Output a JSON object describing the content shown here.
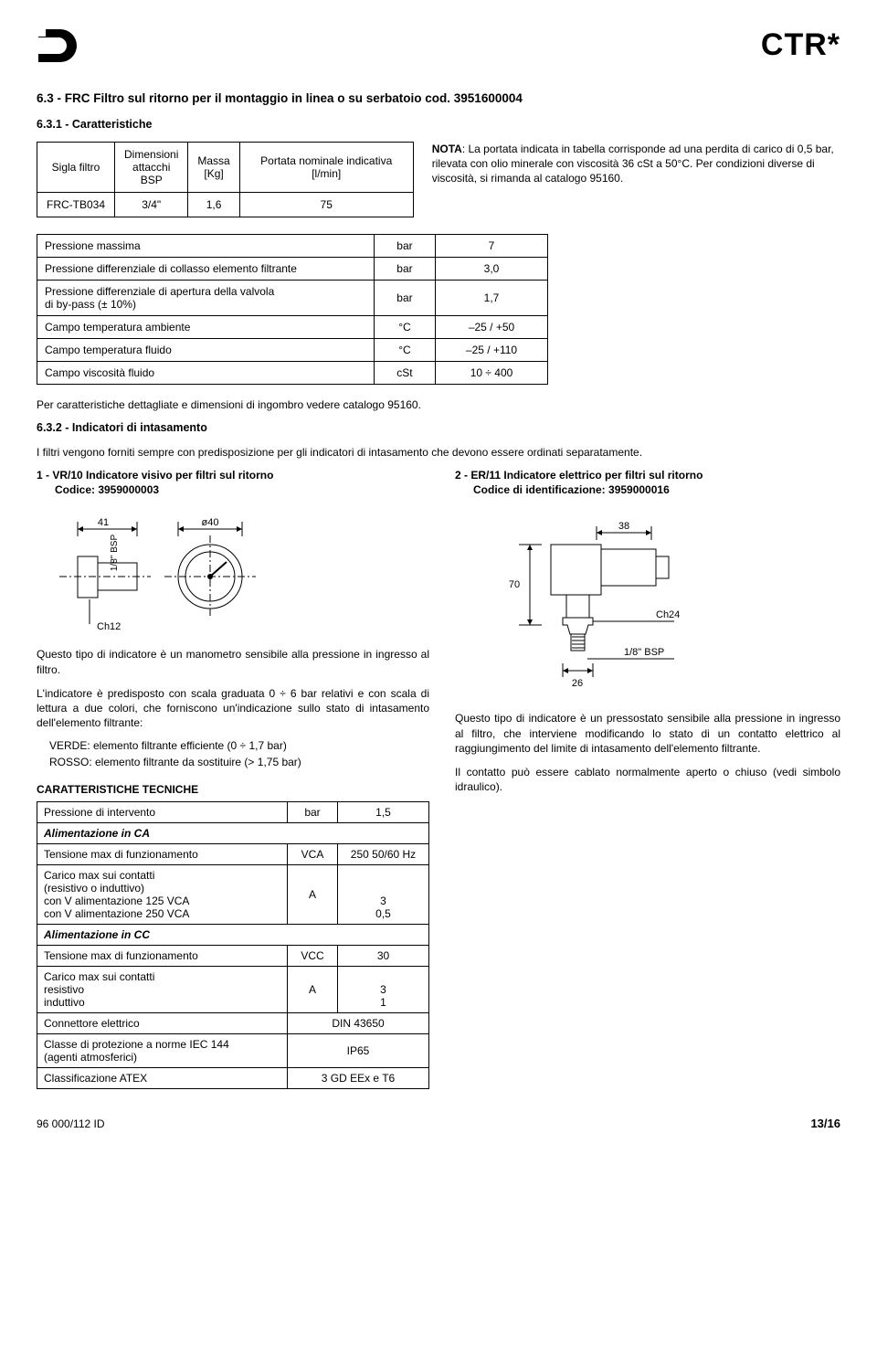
{
  "header": {
    "brand": "CTR*"
  },
  "s63": {
    "title": "6.3 - FRC Filtro sul ritorno per il montaggio in linea o su serbatoio cod. 3951600004",
    "sub631": "6.3.1 - Caratteristiche",
    "t1": {
      "h1": "Sigla filtro",
      "h2": "Dimensioni\nattacchi\nBSP",
      "h3": "Massa\n[Kg]",
      "h4": "Portata nominale indicativa\n[l/min]",
      "r1c1": "FRC-TB034",
      "r1c2": "3/4\"",
      "r1c3": "1,6",
      "r1c4": "75"
    },
    "note": "NOTA: La portata indicata in tabella corrisponde ad una perdita di carico di 0,5 bar, rilevata con olio minerale con viscosità 36 cSt a 50°C. Per condizioni diverse di viscosità, si rimanda al catalogo 95160.",
    "params": [
      [
        "Pressione massima",
        "bar",
        "7"
      ],
      [
        "Pressione differenziale di collasso elemento filtrante",
        "bar",
        "3,0"
      ],
      [
        "Pressione differenziale di apertura della valvola\ndi by-pass (± 10%)",
        "bar",
        "1,7"
      ],
      [
        "Campo temperatura ambiente",
        "°C",
        "–25 / +50"
      ],
      [
        "Campo temperatura fluido",
        "°C",
        "–25 / +110"
      ],
      [
        "Campo viscosità fluido",
        "cSt",
        "10 ÷ 400"
      ]
    ],
    "params_note": "Per caratteristiche dettagliate e dimensioni di ingombro vedere catalogo 95160."
  },
  "s632": {
    "title": "6.3.2 - Indicatori di intasamento",
    "intro": "I filtri vengono forniti sempre con predisposizione per gli indicatori di intasamento che devono essere ordinati separatamente.",
    "left": {
      "title": "1 - VR/10 Indicatore visivo per filtri sul ritorno",
      "code": "Codice: 3959000003",
      "dims": {
        "a": "41",
        "b": "ø40",
        "c": "1/8\" BSP",
        "d": "Ch12"
      },
      "p1": "Questo tipo di indicatore è un manometro sensibile alla pressione in ingresso al filtro.",
      "p2": "L'indicatore è predisposto con scala graduata 0 ÷ 6 bar relativi e con scala di lettura a due colori, che forniscono un'indicazione sullo stato di intasamento dell'elemento filtrante:",
      "li1": "VERDE: elemento filtrante efficiente (0 ÷ 1,7 bar)",
      "li2": "ROSSO: elemento filtrante da sostituire (> 1,75 bar)"
    },
    "right": {
      "title": "2 - ER/11  Indicatore elettrico per filtri sul ritorno",
      "code": "Codice di identificazione: 3959000016",
      "dims": {
        "a": "38",
        "b": "70",
        "c": "Ch24",
        "d": "26",
        "e": "1/8\" BSP"
      },
      "p1": "Questo tipo di indicatore è un pressostato sensibile alla pressione in ingresso al filtro, che interviene modificando lo stato di un contatto elettrico al raggiungimento del limite di intasamento dell'elemento filtrante.",
      "p2": "Il contatto può essere cablato normalmente aperto o chiuso (vedi simbolo idraulico)."
    }
  },
  "tech": {
    "heading": "CARATTERISTICHE TECNICHE",
    "rows": [
      {
        "t": "row",
        "c": [
          "Pressione di intervento",
          "bar",
          "1,5"
        ]
      },
      {
        "t": "hdr",
        "c": [
          "Alimentazione in CA"
        ]
      },
      {
        "t": "row",
        "c": [
          "Tensione max di funzionamento",
          "VCA",
          "250 50/60 Hz"
        ]
      },
      {
        "t": "row",
        "c": [
          "Carico max sui contatti\n(resistivo o induttivo)\ncon V alimentazione 125 VCA\ncon V alimentazione 250 VCA",
          "A",
          "\n\n3\n0,5"
        ]
      },
      {
        "t": "hdr",
        "c": [
          "Alimentazione in CC"
        ]
      },
      {
        "t": "row",
        "c": [
          "Tensione max di funzionamento",
          "VCC",
          "30"
        ]
      },
      {
        "t": "row",
        "c": [
          "Carico max sui contatti\nresistivo\ninduttivo",
          "A",
          "\n3\n1"
        ]
      },
      {
        "t": "row2",
        "c": [
          "Connettore elettrico",
          "DIN 43650"
        ]
      },
      {
        "t": "row2",
        "c": [
          "Classe di protezione a norme IEC 144\n(agenti atmosferici)",
          "IP65"
        ]
      },
      {
        "t": "row2",
        "c": [
          "Classificazione ATEX",
          "3 GD EEx e T6"
        ]
      }
    ]
  },
  "footer": {
    "doc": "96 000/112 ID",
    "page": "13/16"
  }
}
